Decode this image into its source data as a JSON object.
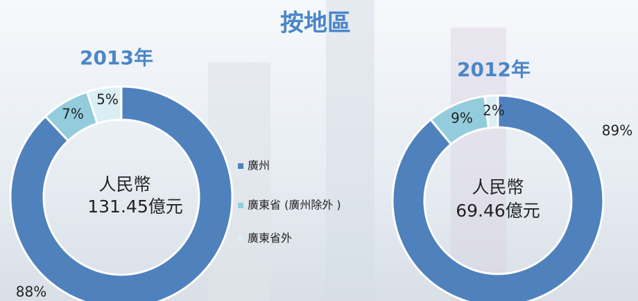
{
  "title": "按地區",
  "categories": [
    "廣州",
    "廣東省 (廣州除外 )",
    "廣東省外"
  ],
  "colors": [
    "#4f81bd",
    "#93cddd",
    "#dbeef4"
  ],
  "chart_data": [
    {
      "type": "pie",
      "title": "2013年",
      "values": [
        88,
        7,
        5
      ],
      "value_labels": [
        "88%",
        "7%",
        "5%"
      ],
      "center_text": [
        "人民幣",
        "131.45億元"
      ]
    },
    {
      "type": "pie",
      "title": "2012年",
      "values": [
        89,
        9,
        2
      ],
      "value_labels": [
        "89%",
        "9%",
        "2%"
      ],
      "center_text": [
        "人民幣",
        "69.46億元"
      ]
    }
  ]
}
